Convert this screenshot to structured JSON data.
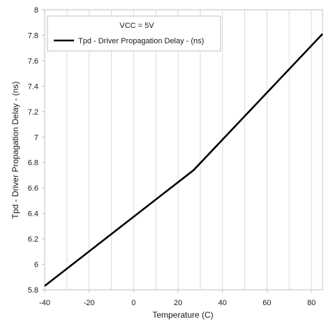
{
  "chart_data": {
    "type": "line",
    "title": "",
    "xlabel": "Temperature (C)",
    "ylabel": "Tpd - Driver Propagation Delay  - (ns)",
    "xlim": [
      -40,
      85
    ],
    "ylim": [
      5.8,
      8
    ],
    "x_ticks": [
      -40,
      -20,
      0,
      20,
      40,
      60,
      80
    ],
    "y_ticks": [
      5.8,
      6,
      6.2,
      6.4,
      6.6,
      6.8,
      7,
      7.2,
      7.4,
      7.6,
      7.8,
      8
    ],
    "x_tick_labels": [
      "-40",
      "-20",
      "0",
      "20",
      "40",
      "60",
      "80"
    ],
    "y_tick_labels": [
      "5.8",
      "6",
      "6.2",
      "6.4",
      "6.6",
      "6.8",
      "7",
      "7.2",
      "7.4",
      "7.6",
      "7.8",
      "8"
    ],
    "grid": {
      "vertical": true,
      "horizontal": false
    },
    "legend": {
      "placement": "top-left",
      "title": "VCC = 5V",
      "entries": [
        "Tpd - Driver Propagation Delay  - (ns)"
      ]
    },
    "series": [
      {
        "name": "Tpd - Driver Propagation Delay  - (ns)",
        "color": "#000000",
        "x": [
          -40,
          27,
          85
        ],
        "y": [
          5.83,
          6.74,
          7.81
        ]
      }
    ]
  }
}
